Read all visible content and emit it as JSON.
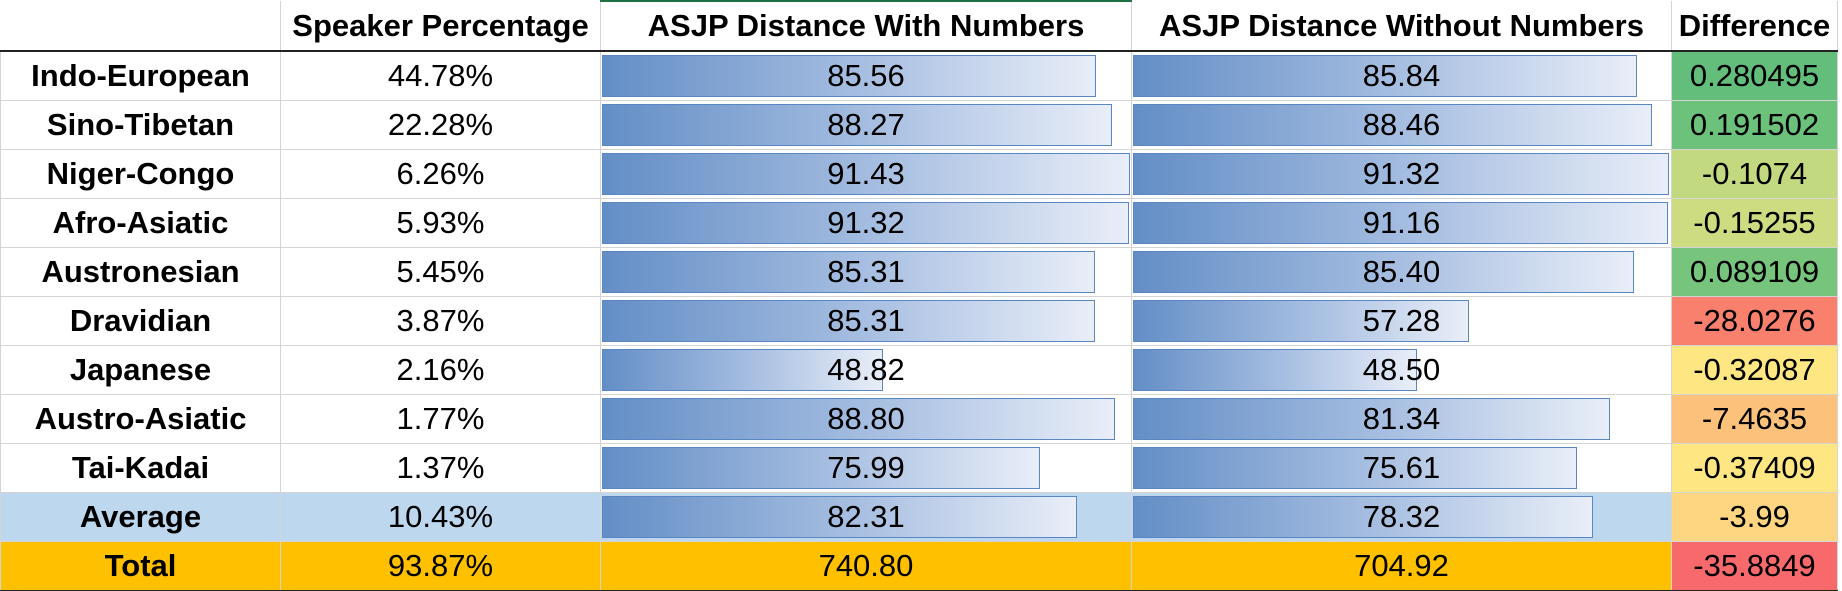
{
  "header": {
    "name_col": "",
    "speaker": "Speaker Percentage",
    "with_numbers": "ASJP Distance With Numbers",
    "without_numbers": "ASJP Distance Without Numbers",
    "difference": "Difference"
  },
  "bar_max": 91.43,
  "colors": {
    "bar": "#638ec6",
    "average_row": "#bdd7ee",
    "total_row": "#ffc000"
  },
  "rows": [
    {
      "name": "Indo-European",
      "speaker": "44.78%",
      "with": 85.56,
      "with_label": "85.56",
      "without": 85.84,
      "without_label": "85.84",
      "diff": "0.280495",
      "diff_color": "#63be7b"
    },
    {
      "name": "Sino-Tibetan",
      "speaker": "22.28%",
      "with": 88.27,
      "with_label": "88.27",
      "without": 88.46,
      "without_label": "88.46",
      "diff": "0.191502",
      "diff_color": "#6cc17b"
    },
    {
      "name": "Niger-Congo",
      "speaker": "6.26%",
      "with": 91.43,
      "with_label": "91.43",
      "without": 91.32,
      "without_label": "91.32",
      "diff": "-0.1074",
      "diff_color": "#c2d97f"
    },
    {
      "name": "Afro-Asiatic",
      "speaker": "5.93%",
      "with": 91.32,
      "with_label": "91.32",
      "without": 91.16,
      "without_label": "91.16",
      "diff": "-0.15255",
      "diff_color": "#cddc80"
    },
    {
      "name": "Austronesian",
      "speaker": "5.45%",
      "with": 85.31,
      "with_label": "85.31",
      "without": 85.4,
      "without_label": "85.40",
      "diff": "0.089109",
      "diff_color": "#77c47c"
    },
    {
      "name": "Dravidian",
      "speaker": "3.87%",
      "with": 85.31,
      "with_label": "85.31",
      "without": 57.28,
      "without_label": "57.28",
      "diff": "-28.0276",
      "diff_color": "#f8806d"
    },
    {
      "name": "Japanese",
      "speaker": "2.16%",
      "with": 48.82,
      "with_label": "48.82",
      "without": 48.5,
      "without_label": "48.50",
      "diff": "-0.32087",
      "diff_color": "#fee682"
    },
    {
      "name": "Austro-Asiatic",
      "speaker": "1.77%",
      "with": 88.8,
      "with_label": "88.80",
      "without": 81.34,
      "without_label": "81.34",
      "diff": "-7.4635",
      "diff_color": "#fcc27b"
    },
    {
      "name": "Tai-Kadai",
      "speaker": "1.37%",
      "with": 75.99,
      "with_label": "75.99",
      "without": 75.61,
      "without_label": "75.61",
      "diff": "-0.37409",
      "diff_color": "#fee683"
    }
  ],
  "average": {
    "name": "Average",
    "speaker": "10.43%",
    "with": 82.31,
    "with_label": "82.31",
    "without": 78.32,
    "without_label": "78.32",
    "diff": "-3.99",
    "diff_color": "#fed580"
  },
  "total": {
    "name": "Total",
    "speaker": "93.87%",
    "with": "740.80",
    "without": "704.92",
    "diff": "-35.8849",
    "diff_color": "#f8696b"
  }
}
